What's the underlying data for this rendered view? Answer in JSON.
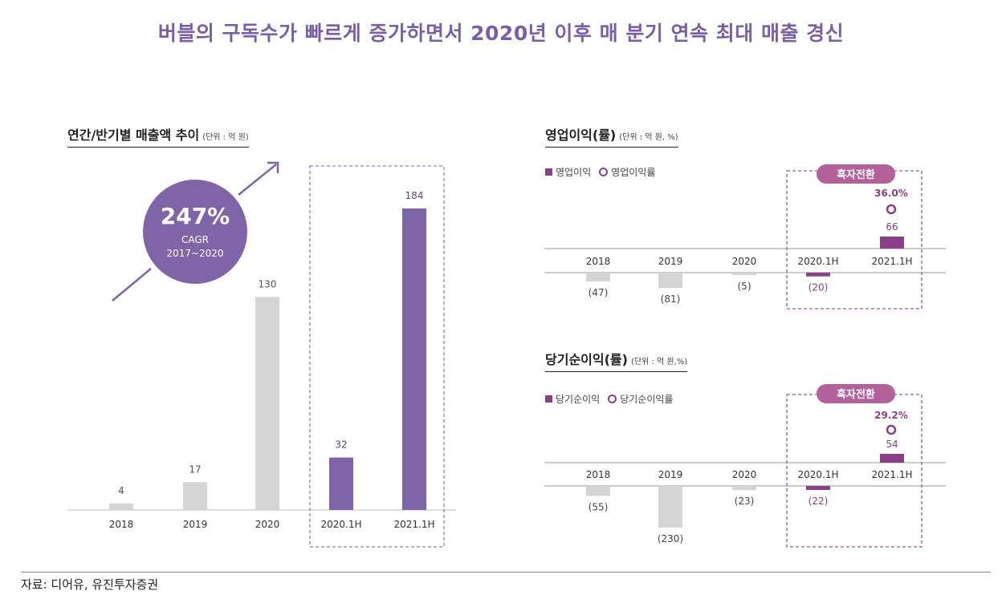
{
  "title": "버블의 구독수가 빠르게 증가하면서 2020년 이후 매 분기 연속 최대 매출 경신",
  "source": "자료: 디어유, 유진투자증권",
  "colors": {
    "purple": "#7f64a8",
    "gray": "#d4d4d4",
    "magenta": "#8a3f87",
    "pill": "#b3609b",
    "title": "#7b5ea8"
  },
  "left": {
    "title": "연간/반기별 매출액 추이",
    "unit": "(단위 : 억 원)",
    "cagr": {
      "value": "247%",
      "label": "CAGR",
      "period": "2017~2020"
    }
  },
  "op": {
    "title": "영업이익(률)",
    "unit": "(단위 : 억 원, %)",
    "legend_bar": "영업이익",
    "legend_rate": "영업이익률",
    "badge": "흑자전환",
    "rate_label": "36.0%"
  },
  "net": {
    "title": "당기순이익(률)",
    "unit": "(단위 : 억 원,%)",
    "legend_bar": "당기순이익",
    "legend_rate": "당기순이익률",
    "badge": "흑자전환",
    "rate_label": "29.2%"
  },
  "chart_data": [
    {
      "type": "bar",
      "title": "연간/반기별 매출액 추이",
      "unit": "억 원",
      "categories": [
        "2018",
        "2019",
        "2020",
        "2020.1H",
        "2021.1H"
      ],
      "values": [
        4,
        17,
        130,
        32,
        184
      ],
      "labels": [
        "4",
        "17",
        "130",
        "32",
        "184"
      ]
    },
    {
      "type": "bar",
      "title": "영업이익(률)",
      "unit": "억 원, %",
      "categories": [
        "2018",
        "2019",
        "2020",
        "2020.1H",
        "2021.1H"
      ],
      "series": [
        {
          "name": "영업이익",
          "values": [
            -47,
            -81,
            -5,
            -20,
            66
          ],
          "labels": [
            "(47)",
            "(81)",
            "(5)",
            "(20)",
            "66"
          ]
        },
        {
          "name": "영업이익률",
          "values": [
            null,
            null,
            null,
            null,
            36.0
          ]
        }
      ]
    },
    {
      "type": "bar",
      "title": "당기순이익(률)",
      "unit": "억 원, %",
      "categories": [
        "2018",
        "2019",
        "2020",
        "2020.1H",
        "2021.1H"
      ],
      "series": [
        {
          "name": "당기순이익",
          "values": [
            -55,
            -230,
            -23,
            -22,
            54
          ],
          "labels": [
            "(55)",
            "(230)",
            "(23)",
            "(22)",
            "54"
          ]
        },
        {
          "name": "당기순이익률",
          "values": [
            null,
            null,
            null,
            null,
            29.2
          ]
        }
      ]
    }
  ]
}
